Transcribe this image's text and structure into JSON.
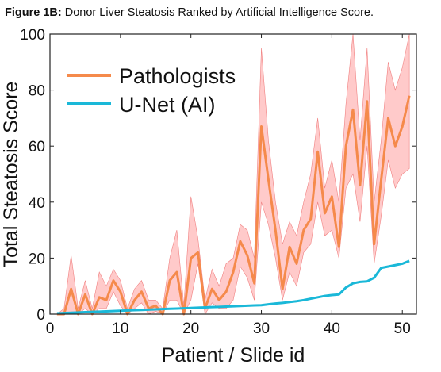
{
  "chart_data": {
    "type": "line",
    "figure_label": "Figure 1B:",
    "title": "Donor Liver Steatosis Ranked by Artificial Intelligence Score.",
    "xlabel": "Patient / Slide id",
    "ylabel": "Total Steatosis Score",
    "x": [
      1,
      2,
      3,
      4,
      5,
      6,
      7,
      8,
      9,
      10,
      11,
      12,
      13,
      14,
      15,
      16,
      17,
      18,
      19,
      20,
      21,
      22,
      23,
      24,
      25,
      26,
      27,
      28,
      29,
      30,
      31,
      32,
      33,
      34,
      35,
      36,
      37,
      38,
      39,
      40,
      41,
      42,
      43,
      44,
      45,
      46,
      47,
      48,
      49,
      50,
      51
    ],
    "series": [
      {
        "name": "Pathologists",
        "color": "#f58a4b",
        "values": [
          0,
          0,
          9,
          0,
          7,
          0,
          6,
          5,
          12,
          8,
          0,
          5,
          8,
          2,
          3,
          0,
          12,
          15,
          0,
          20,
          22,
          2,
          9,
          5,
          8,
          15,
          26,
          21,
          11,
          67,
          48,
          30,
          9,
          24,
          18,
          30,
          34,
          58,
          36,
          42,
          24,
          60,
          73,
          46,
          76,
          25,
          48,
          70,
          60,
          67,
          78
        ]
      },
      {
        "name": "U-Net (AI)",
        "color": "#1ab8d8",
        "values": [
          0.3,
          0.4,
          0.5,
          0.6,
          0.7,
          0.8,
          0.9,
          1.0,
          1.1,
          1.2,
          1.3,
          1.4,
          1.5,
          1.6,
          1.7,
          1.8,
          1.9,
          2.0,
          2.1,
          2.2,
          2.3,
          2.4,
          2.5,
          2.6,
          2.7,
          2.8,
          2.9,
          3.0,
          3.1,
          3.2,
          3.5,
          3.8,
          4.0,
          4.3,
          4.6,
          5.0,
          5.5,
          6.0,
          6.5,
          6.8,
          7.0,
          9.5,
          11,
          11.5,
          11.7,
          13,
          16.5,
          17,
          17.5,
          18,
          19
        ]
      }
    ],
    "band": {
      "color": "#ffb3b3",
      "upper": [
        0,
        2,
        21,
        2,
        12,
        2,
        15,
        10,
        16,
        12,
        2,
        9,
        12,
        5,
        5,
        2,
        20,
        30,
        3,
        42,
        27,
        5,
        16,
        10,
        18,
        20,
        32,
        30,
        20,
        95,
        62,
        40,
        25,
        33,
        28,
        40,
        50,
        70,
        45,
        55,
        40,
        75,
        100,
        62,
        95,
        40,
        62,
        90,
        80,
        88,
        100
      ],
      "lower": [
        0,
        0,
        0,
        0,
        2,
        0,
        2,
        2,
        8,
        3,
        0,
        2,
        4,
        0,
        1,
        0,
        5,
        5,
        0,
        5,
        18,
        0,
        4,
        2,
        2,
        5,
        17,
        13,
        5,
        40,
        32,
        20,
        5,
        15,
        10,
        22,
        25,
        40,
        28,
        30,
        20,
        45,
        50,
        33,
        60,
        18,
        35,
        55,
        45,
        50,
        52
      ]
    },
    "xlim": [
      0,
      52
    ],
    "xticks": [
      0,
      10,
      20,
      30,
      40,
      50
    ],
    "ylim": [
      0,
      100
    ],
    "yticks": [
      0,
      20,
      40,
      60,
      80,
      100
    ],
    "grid": false,
    "legend": "upper left"
  }
}
